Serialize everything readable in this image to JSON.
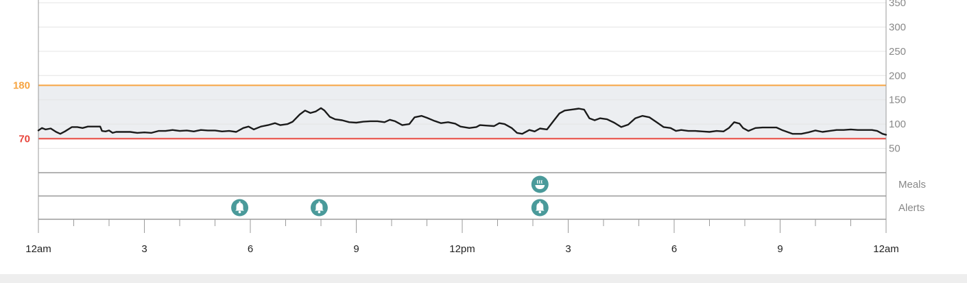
{
  "chart_data": {
    "type": "line",
    "title": "",
    "ylim": [
      0,
      380
    ],
    "x_range_hours": [
      0,
      24
    ],
    "y_ticks": [
      50,
      100,
      150,
      200,
      250,
      300,
      350
    ],
    "y_axis_position": "right",
    "x_ticks": [
      {
        "hour": 0,
        "label": "12am"
      },
      {
        "hour": 3,
        "label": "3"
      },
      {
        "hour": 6,
        "label": "6"
      },
      {
        "hour": 9,
        "label": "9"
      },
      {
        "hour": 12,
        "label": "12pm"
      },
      {
        "hour": 15,
        "label": "3"
      },
      {
        "hour": 18,
        "label": "6"
      },
      {
        "hour": 21,
        "label": "9"
      },
      {
        "hour": 24,
        "label": "12am"
      }
    ],
    "target_range": {
      "low": 70,
      "high": 180
    },
    "thresholds": [
      {
        "value": 180,
        "label": "180",
        "color": "#f7a440"
      },
      {
        "value": 70,
        "label": "70",
        "color": "#e8453c"
      }
    ],
    "series": [
      {
        "line_color": "#1a1a1a",
        "points": [
          [
            0.0,
            87
          ],
          [
            0.1,
            92
          ],
          [
            0.2,
            89
          ],
          [
            0.35,
            91
          ],
          [
            0.5,
            84
          ],
          [
            0.62,
            80
          ],
          [
            0.75,
            85
          ],
          [
            0.95,
            94
          ],
          [
            1.1,
            94
          ],
          [
            1.25,
            92
          ],
          [
            1.4,
            95
          ],
          [
            1.6,
            95
          ],
          [
            1.75,
            95
          ],
          [
            1.8,
            86
          ],
          [
            1.9,
            85
          ],
          [
            2.0,
            87
          ],
          [
            2.1,
            82
          ],
          [
            2.2,
            84
          ],
          [
            2.4,
            84
          ],
          [
            2.6,
            84
          ],
          [
            2.8,
            82
          ],
          [
            3.0,
            83
          ],
          [
            3.2,
            82
          ],
          [
            3.4,
            86
          ],
          [
            3.6,
            86
          ],
          [
            3.8,
            88
          ],
          [
            4.0,
            86
          ],
          [
            4.2,
            87
          ],
          [
            4.4,
            85
          ],
          [
            4.6,
            88
          ],
          [
            4.8,
            87
          ],
          [
            5.0,
            87
          ],
          [
            5.2,
            85
          ],
          [
            5.4,
            86
          ],
          [
            5.6,
            84
          ],
          [
            5.8,
            92
          ],
          [
            5.95,
            95
          ],
          [
            6.1,
            89
          ],
          [
            6.3,
            95
          ],
          [
            6.5,
            98
          ],
          [
            6.7,
            102
          ],
          [
            6.85,
            98
          ],
          [
            7.05,
            100
          ],
          [
            7.2,
            105
          ],
          [
            7.4,
            120
          ],
          [
            7.55,
            128
          ],
          [
            7.7,
            123
          ],
          [
            7.85,
            126
          ],
          [
            8.0,
            133
          ],
          [
            8.1,
            128
          ],
          [
            8.25,
            115
          ],
          [
            8.4,
            110
          ],
          [
            8.6,
            108
          ],
          [
            8.8,
            104
          ],
          [
            9.0,
            103
          ],
          [
            9.2,
            105
          ],
          [
            9.4,
            106
          ],
          [
            9.6,
            106
          ],
          [
            9.8,
            104
          ],
          [
            9.95,
            109
          ],
          [
            10.1,
            106
          ],
          [
            10.3,
            98
          ],
          [
            10.5,
            100
          ],
          [
            10.65,
            114
          ],
          [
            10.85,
            117
          ],
          [
            11.0,
            113
          ],
          [
            11.2,
            107
          ],
          [
            11.4,
            102
          ],
          [
            11.6,
            104
          ],
          [
            11.8,
            101
          ],
          [
            11.95,
            95
          ],
          [
            12.2,
            92
          ],
          [
            12.4,
            94
          ],
          [
            12.5,
            98
          ],
          [
            12.7,
            97
          ],
          [
            12.9,
            96
          ],
          [
            13.05,
            102
          ],
          [
            13.2,
            100
          ],
          [
            13.4,
            92
          ],
          [
            13.55,
            82
          ],
          [
            13.7,
            80
          ],
          [
            13.9,
            88
          ],
          [
            14.05,
            85
          ],
          [
            14.2,
            91
          ],
          [
            14.4,
            89
          ],
          [
            14.6,
            108
          ],
          [
            14.75,
            122
          ],
          [
            14.9,
            128
          ],
          [
            15.1,
            130
          ],
          [
            15.3,
            132
          ],
          [
            15.45,
            130
          ],
          [
            15.6,
            112
          ],
          [
            15.75,
            108
          ],
          [
            15.9,
            112
          ],
          [
            16.1,
            110
          ],
          [
            16.3,
            103
          ],
          [
            16.5,
            94
          ],
          [
            16.7,
            99
          ],
          [
            16.9,
            112
          ],
          [
            17.1,
            117
          ],
          [
            17.3,
            114
          ],
          [
            17.5,
            104
          ],
          [
            17.7,
            94
          ],
          [
            17.9,
            92
          ],
          [
            18.05,
            86
          ],
          [
            18.2,
            88
          ],
          [
            18.4,
            86
          ],
          [
            18.6,
            86
          ],
          [
            18.8,
            85
          ],
          [
            19.0,
            84
          ],
          [
            19.2,
            86
          ],
          [
            19.4,
            85
          ],
          [
            19.55,
            92
          ],
          [
            19.7,
            104
          ],
          [
            19.85,
            101
          ],
          [
            19.95,
            92
          ],
          [
            20.1,
            86
          ],
          [
            20.3,
            92
          ],
          [
            20.5,
            93
          ],
          [
            20.7,
            93
          ],
          [
            20.9,
            93
          ],
          [
            21.05,
            88
          ],
          [
            21.2,
            84
          ],
          [
            21.35,
            80
          ],
          [
            21.6,
            80
          ],
          [
            21.8,
            83
          ],
          [
            22.0,
            87
          ],
          [
            22.2,
            84
          ],
          [
            22.4,
            86
          ],
          [
            22.6,
            88
          ],
          [
            22.8,
            88
          ],
          [
            23.0,
            89
          ],
          [
            23.2,
            88
          ],
          [
            23.4,
            88
          ],
          [
            23.6,
            88
          ],
          [
            23.75,
            86
          ],
          [
            23.9,
            80
          ],
          [
            24.0,
            78
          ]
        ]
      }
    ],
    "event_rows": [
      {
        "label": "Meals",
        "events": [
          {
            "hour": 14.2,
            "icon": "meal-bowl-icon"
          }
        ]
      },
      {
        "label": "Alerts",
        "events": [
          {
            "hour": 5.7,
            "icon": "alert-bell-icon"
          },
          {
            "hour": 7.95,
            "icon": "alert-bell-icon"
          },
          {
            "hour": 14.2,
            "icon": "alert-bell-icon"
          }
        ]
      }
    ],
    "colors": {
      "target_band": "#eceef1",
      "gridline": "#e4e4e4",
      "axis": "#9a9a9a",
      "event_marker": "#4a9a9a"
    }
  }
}
